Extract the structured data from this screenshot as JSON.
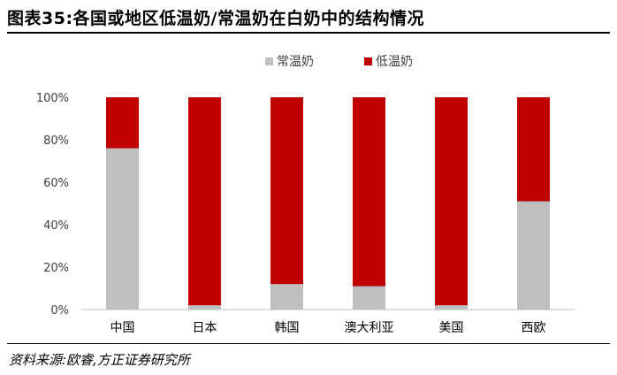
{
  "title": "图表35:各国或地区低温奶/常温奶在白奶中的结构情况",
  "source": "资料来源:欧睿,方正证券研究所",
  "chart_data": {
    "type": "bar",
    "stacked": true,
    "categories": [
      "中国",
      "日本",
      "韩国",
      "澳大利亚",
      "美国",
      "西欧"
    ],
    "series": [
      {
        "name": "常温奶",
        "color": "#bfbfbf",
        "values": [
          76,
          2,
          12,
          11,
          2,
          51
        ]
      },
      {
        "name": "低温奶",
        "color": "#c00000",
        "values": [
          24,
          98,
          88,
          89,
          98,
          49
        ]
      }
    ],
    "ylim": [
      0,
      100
    ],
    "yticks": [
      "0%",
      "20%",
      "40%",
      "60%",
      "80%",
      "100%"
    ],
    "grid": false,
    "legend": "top"
  }
}
